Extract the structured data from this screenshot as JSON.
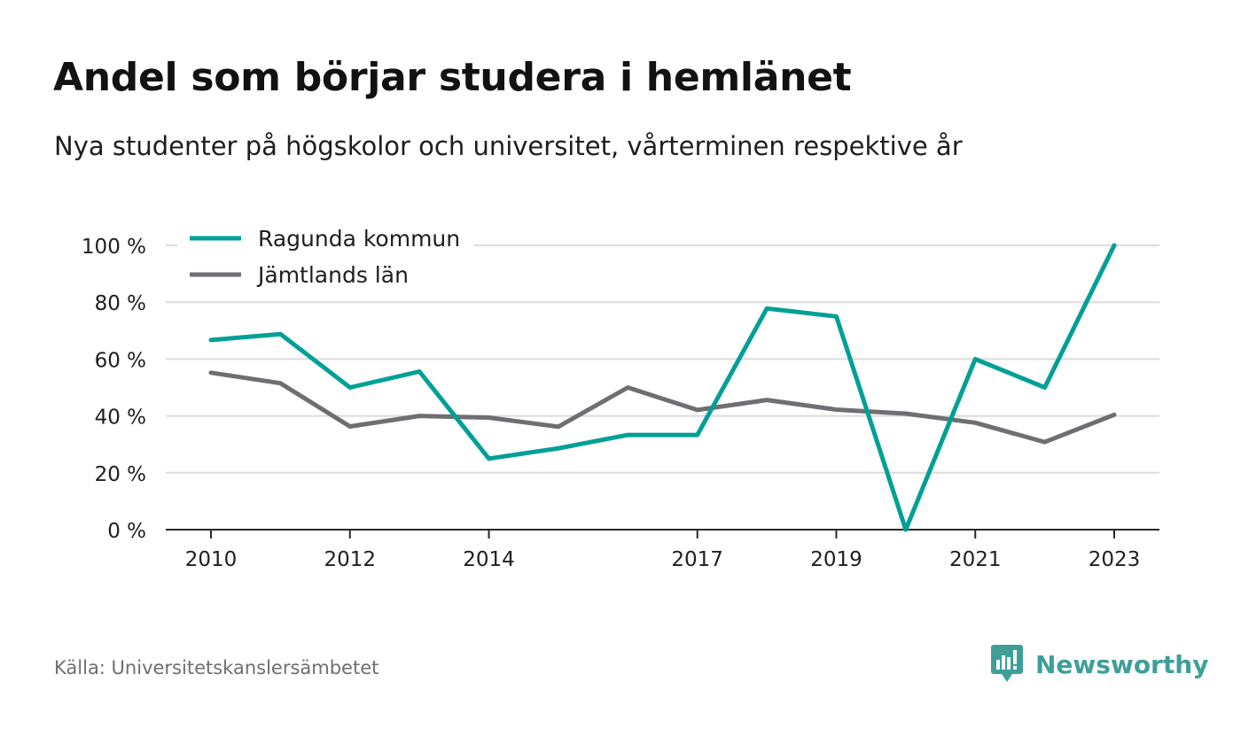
{
  "title": "Andel som börjar studera i hemlänet",
  "subtitle": "Nya studenter på högskolor och universitet, vårterminen respektive år",
  "source": "Källa: Universitetskanslersämbetet",
  "brand": {
    "name": "Newsworthy",
    "icon": "newsworthy-logo-icon",
    "color": "#3e9f99"
  },
  "chart_data": {
    "type": "line",
    "title": "Andel som börjar studera i hemlänet",
    "subtitle": "Nya studenter på högskolor och universitet, vårterminen respektive år",
    "x": [
      2010,
      2011,
      2012,
      2013,
      2014,
      2015,
      2016,
      2017,
      2018,
      2019,
      2020,
      2021,
      2022,
      2023
    ],
    "x_tick_labels": [
      "2010",
      "2012",
      "2014",
      "2017",
      "2019",
      "2021",
      "2023"
    ],
    "y_ticks": [
      0,
      20,
      40,
      60,
      80,
      100
    ],
    "y_tick_labels": [
      "0 %",
      "20 %",
      "40 %",
      "60 %",
      "80 %",
      "100 %"
    ],
    "ylim": [
      0,
      100
    ],
    "xlabel": "",
    "ylabel": "",
    "grid": true,
    "legend_position": "top-left",
    "series": [
      {
        "name": "Ragunda kommun",
        "color": "#00a096",
        "values": [
          66.7,
          68.8,
          50.0,
          55.6,
          25.0,
          28.6,
          33.3,
          33.3,
          77.8,
          75.0,
          0.0,
          60.0,
          50.0,
          100.0
        ]
      },
      {
        "name": "Jämtlands län",
        "color": "#6e6e73",
        "values": [
          55.2,
          51.5,
          36.3,
          40.0,
          39.4,
          36.2,
          50.0,
          42.1,
          45.6,
          42.2,
          40.8,
          37.6,
          30.8,
          40.4
        ]
      }
    ]
  }
}
